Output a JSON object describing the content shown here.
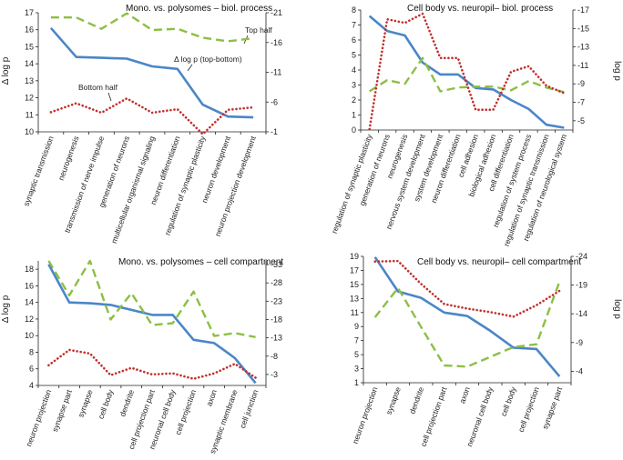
{
  "colors": {
    "delta": "#4a86c8",
    "top": "#8cbf45",
    "bottom": "#c0302c",
    "axis": "#222222"
  },
  "chart_data": [
    {
      "id": "p1",
      "type": "line",
      "title": "Mono. vs. polysomes – biol. process",
      "ylabel": "Δ log  p",
      "y2label": "",
      "ylim": [
        10,
        17
      ],
      "yticks": [
        10,
        11,
        12,
        13,
        14,
        15,
        16,
        17
      ],
      "y2lim": [
        -1,
        -21
      ],
      "y2ticks": [
        -1,
        -6,
        -11,
        -16,
        -21
      ],
      "categories": [
        "synaptic transmission",
        "neurogenesis",
        "transmission of nerve impulse",
        "generation of neurons",
        "multicellular organismal signaling",
        "neuron differentiation",
        "regulation of synaptic plasticity",
        "neuron development",
        "neuron projection development"
      ],
      "series": [
        {
          "name": "Δ log p (top-bottom)",
          "axis": "left",
          "style": "solid",
          "values": [
            16.1,
            14.4,
            14.35,
            14.3,
            13.85,
            13.7,
            11.6,
            10.9,
            10.85
          ]
        },
        {
          "name": "Top half",
          "axis": "right",
          "style": "dash",
          "values": [
            -20.2,
            -20.2,
            -18.3,
            -20.9,
            -18.1,
            -18.3,
            -16.8,
            -16.2,
            -16.7
          ]
        },
        {
          "name": "Bottom half",
          "axis": "right",
          "style": "dot",
          "values": [
            -4.3,
            -5.8,
            -4.2,
            -6.6,
            -4.2,
            -4.8,
            -0.6,
            -4.7,
            -5.1
          ]
        }
      ],
      "annotations": [
        "Top half",
        "Δ log p (top-bottom)",
        "Bottom half"
      ]
    },
    {
      "id": "p2",
      "type": "line",
      "title": "Cell body vs. neuropil– biol. process",
      "ylabel": "",
      "y2label": "log p",
      "ylim": [
        0,
        8
      ],
      "yticks": [
        0,
        1,
        2,
        3,
        4,
        5,
        6,
        7,
        8
      ],
      "y2lim": [
        -4,
        -17
      ],
      "y2ticks": [
        -5,
        -7,
        -9,
        -11,
        -13,
        -15,
        -17
      ],
      "categories": [
        "regulation of synaptic plasticity",
        "generation of neurons",
        "neurogenesis",
        "nervous system development",
        "system development",
        "neuron differentiation",
        "cell adhesion",
        "biological adhesion",
        "cell differentiation",
        "regulation of system process",
        "regulation of synaptic transmission",
        "regulation of neurological system"
      ],
      "series": [
        {
          "name": "Δ log p",
          "axis": "left",
          "style": "solid",
          "values": [
            7.6,
            6.6,
            6.3,
            4.5,
            3.7,
            3.7,
            2.8,
            2.7,
            2.0,
            1.4,
            0.35,
            0.15
          ]
        },
        {
          "name": "Top half",
          "axis": "right",
          "style": "dash",
          "values": [
            -8.2,
            -9.4,
            -9.0,
            -11.8,
            -8.2,
            -8.6,
            -8.7,
            -8.7,
            -8.3,
            -9.3,
            -8.6,
            -8.1
          ]
        },
        {
          "name": "Bottom half",
          "axis": "right",
          "style": "dot",
          "values": [
            -4.1,
            -16.0,
            -15.6,
            -16.6,
            -11.8,
            -11.8,
            -6.2,
            -6.2,
            -10.3,
            -10.9,
            -8.8,
            -8.0
          ]
        }
      ]
    },
    {
      "id": "p3",
      "type": "line",
      "title": "Mono. vs. polysomes – cell compartment",
      "ylabel": "Δ log  p",
      "y2label": "",
      "ylim": [
        4,
        19
      ],
      "yticks": [
        4,
        6,
        8,
        10,
        12,
        14,
        16,
        18
      ],
      "y2lim": [
        0,
        -34
      ],
      "y2ticks": [
        -3,
        -8,
        -13,
        -18,
        -23,
        -28,
        -33
      ],
      "categories": [
        "neuron projection",
        "synapse part",
        "synapse",
        "cell body",
        "dendrite",
        "cell projection part",
        "neuronal cell body",
        "cell projection",
        "axon",
        "synaptic membrane",
        "cell junction"
      ],
      "series": [
        {
          "name": "Δ log p",
          "axis": "left",
          "style": "solid",
          "values": [
            18.6,
            14.0,
            13.9,
            13.7,
            13.1,
            12.5,
            12.5,
            9.5,
            9.1,
            7.3,
            4.3
          ]
        },
        {
          "name": "Top half",
          "axis": "right",
          "style": "dash",
          "values": [
            -34,
            -24.6,
            -34,
            -18,
            -25.2,
            -16.5,
            -17.0,
            -25.6,
            -13.5,
            -14.3,
            -13.2
          ]
        },
        {
          "name": "Bottom half",
          "axis": "right",
          "style": "dot",
          "values": [
            -5.5,
            -9.7,
            -8.7,
            -2.8,
            -4.8,
            -3.0,
            -3.3,
            -1.8,
            -3.3,
            -5.9,
            -2.1
          ]
        }
      ]
    },
    {
      "id": "p4",
      "type": "line",
      "title": "Cell body vs. neuropil– cell compartment",
      "ylabel": "",
      "y2label": "log p",
      "ylim": [
        1,
        19
      ],
      "yticks": [
        1,
        3,
        5,
        7,
        9,
        11,
        13,
        15,
        17,
        19
      ],
      "y2lim": [
        -2,
        -24
      ],
      "y2ticks": [
        -4,
        -9,
        -14,
        -19,
        -24
      ],
      "categories": [
        "neuron projection",
        "synapse",
        "dendrite",
        "cell projection part",
        "axon",
        "neuronal cell body",
        "cell body",
        "cell projection",
        "synapse part"
      ],
      "series": [
        {
          "name": "Δ log p",
          "axis": "left",
          "style": "solid",
          "values": [
            18.9,
            14.0,
            13.1,
            11.0,
            10.5,
            8.4,
            6.0,
            5.8,
            1.9
          ]
        },
        {
          "name": "Top half",
          "axis": "right",
          "style": "dash",
          "values": [
            -13.4,
            -18.5,
            -11.7,
            -5.0,
            -4.8,
            -6.5,
            -8.2,
            -8.7,
            -19.6
          ]
        },
        {
          "name": "Bottom half",
          "axis": "right",
          "style": "dot",
          "values": [
            -23.1,
            -23.2,
            -19.2,
            -15.7,
            -14.9,
            -14.3,
            -13.5,
            -15.5,
            -18.0
          ]
        }
      ]
    }
  ]
}
